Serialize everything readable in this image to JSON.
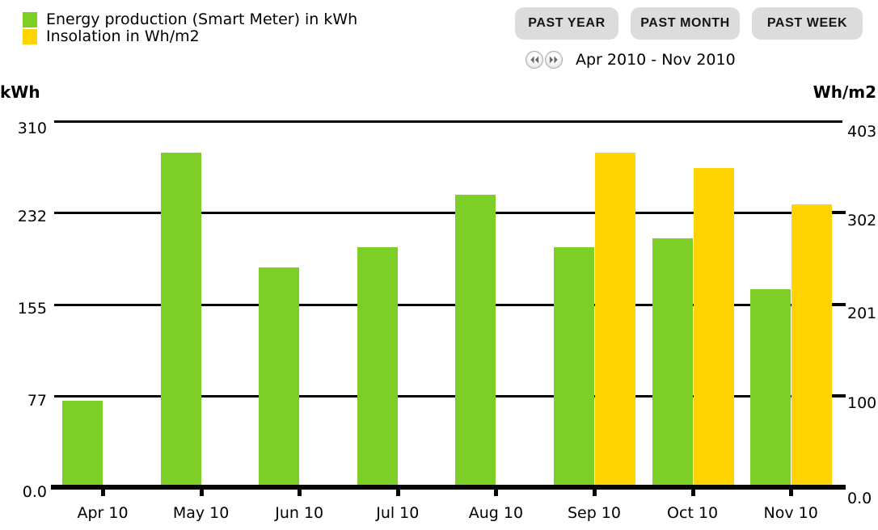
{
  "legend": {
    "items": [
      {
        "label": "Energy production (Smart Meter) in kWh",
        "color": "#7DCF28"
      },
      {
        "label": "Insolation in Wh/m2",
        "color": "#FFD400"
      }
    ]
  },
  "toolbar": {
    "buttons": [
      {
        "label": "PAST YEAR"
      },
      {
        "label": "PAST MONTH"
      },
      {
        "label": "PAST WEEK"
      }
    ]
  },
  "pager": {
    "prev_icon": "rewind-icon",
    "next_icon": "fast-forward-icon",
    "range_label": "Apr 2010 - Nov 2010"
  },
  "axes": {
    "left": {
      "title": "kWh",
      "tick_labels": [
        "310",
        "232",
        "155",
        "77",
        "0.0"
      ],
      "max": 310
    },
    "right": {
      "title": "Wh/m2",
      "tick_labels": [
        "403",
        "302",
        "201",
        "100",
        "0.0"
      ],
      "max": 403
    }
  },
  "chart_data": {
    "type": "bar",
    "categories": [
      "Apr 10",
      "May 10",
      "Jun 10",
      "Jul 10",
      "Aug 10",
      "Sep 10",
      "Oct 10",
      "Nov 10"
    ],
    "series": [
      {
        "name": "Energy production (Smart Meter) in kWh",
        "axis": "left",
        "color": "#7DCF28",
        "values": [
          73,
          283,
          186,
          203,
          248,
          203,
          211,
          168
        ]
      },
      {
        "name": "Insolation in Wh/m2",
        "axis": "right",
        "color": "#FFD400",
        "values": [
          null,
          null,
          null,
          null,
          null,
          368,
          351,
          311
        ]
      }
    ],
    "left_ylim": [
      0,
      310
    ],
    "right_ylim": [
      0,
      403
    ],
    "grid": true,
    "legend_position": "top-left",
    "gridline_color": "#050505"
  },
  "colors": {
    "green": "#7DCF28",
    "yellow": "#FFD400",
    "button_bg": "#DCDCDC",
    "grid": "#050505",
    "pager_arrow": "#6b6b6b"
  }
}
